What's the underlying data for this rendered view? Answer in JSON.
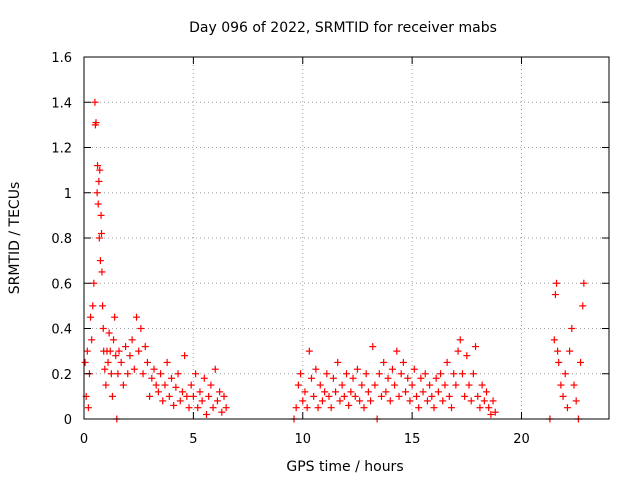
{
  "chart_data": {
    "type": "scatter",
    "title": "Day 096 of 2022, SRMTID for receiver mabs",
    "xlabel": "GPS time / hours",
    "ylabel": "SRMTID / TECUs",
    "xlim": [
      0,
      24
    ],
    "ylim": [
      0,
      1.6
    ],
    "x_ticks": [
      0,
      5,
      10,
      15,
      20
    ],
    "y_ticks": [
      0,
      0.2,
      0.4,
      0.6,
      0.8,
      1,
      1.2,
      1.4,
      1.6
    ],
    "x_tick_labels": [
      "0",
      "5",
      "10",
      "15",
      "20"
    ],
    "y_tick_labels": [
      "0",
      "0.2",
      "0.4",
      "0.6",
      "0.8",
      "1",
      "1.2",
      "1.4",
      "1.6"
    ],
    "grid": true,
    "marker": "+",
    "color": "#ff0000",
    "series": [
      {
        "name": "SRMTID",
        "points": [
          [
            0.05,
            0.25
          ],
          [
            0.1,
            0.1
          ],
          [
            0.15,
            0.3
          ],
          [
            0.2,
            0.05
          ],
          [
            0.25,
            0.2
          ],
          [
            0.3,
            0.45
          ],
          [
            0.35,
            0.35
          ],
          [
            0.4,
            0.5
          ],
          [
            0.45,
            0.6
          ],
          [
            0.5,
            1.4
          ],
          [
            0.52,
            1.3
          ],
          [
            0.55,
            1.31
          ],
          [
            0.6,
            1.0
          ],
          [
            0.62,
            1.12
          ],
          [
            0.65,
            0.95
          ],
          [
            0.68,
            1.05
          ],
          [
            0.7,
            0.8
          ],
          [
            0.72,
            1.1
          ],
          [
            0.75,
            0.7
          ],
          [
            0.78,
            0.9
          ],
          [
            0.8,
            0.82
          ],
          [
            0.82,
            0.65
          ],
          [
            0.85,
            0.5
          ],
          [
            0.88,
            0.4
          ],
          [
            0.9,
            0.3
          ],
          [
            0.95,
            0.22
          ],
          [
            1.0,
            0.15
          ],
          [
            1.05,
            0.3
          ],
          [
            1.1,
            0.25
          ],
          [
            1.15,
            0.38
          ],
          [
            1.2,
            0.3
          ],
          [
            1.25,
            0.2
          ],
          [
            1.3,
            0.1
          ],
          [
            1.35,
            0.35
          ],
          [
            1.4,
            0.45
          ],
          [
            1.45,
            0.28
          ],
          [
            1.5,
            0.0
          ],
          [
            1.55,
            0.2
          ],
          [
            1.6,
            0.3
          ],
          [
            1.7,
            0.25
          ],
          [
            1.8,
            0.15
          ],
          [
            1.9,
            0.32
          ],
          [
            2.0,
            0.2
          ],
          [
            2.1,
            0.28
          ],
          [
            2.2,
            0.35
          ],
          [
            2.3,
            0.22
          ],
          [
            2.4,
            0.45
          ],
          [
            2.5,
            0.3
          ],
          [
            2.6,
            0.4
          ],
          [
            2.7,
            0.2
          ],
          [
            2.8,
            0.32
          ],
          [
            2.9,
            0.25
          ],
          [
            3.0,
            0.1
          ],
          [
            3.1,
            0.18
          ],
          [
            3.2,
            0.22
          ],
          [
            3.3,
            0.15
          ],
          [
            3.4,
            0.12
          ],
          [
            3.5,
            0.2
          ],
          [
            3.6,
            0.08
          ],
          [
            3.7,
            0.15
          ],
          [
            3.8,
            0.25
          ],
          [
            3.9,
            0.1
          ],
          [
            4.0,
            0.18
          ],
          [
            4.1,
            0.06
          ],
          [
            4.2,
            0.14
          ],
          [
            4.3,
            0.2
          ],
          [
            4.4,
            0.08
          ],
          [
            4.5,
            0.12
          ],
          [
            4.6,
            0.28
          ],
          [
            4.7,
            0.1
          ],
          [
            4.8,
            0.05
          ],
          [
            4.9,
            0.15
          ],
          [
            5.0,
            0.1
          ],
          [
            5.1,
            0.2
          ],
          [
            5.2,
            0.05
          ],
          [
            5.3,
            0.12
          ],
          [
            5.4,
            0.08
          ],
          [
            5.5,
            0.18
          ],
          [
            5.6,
            0.02
          ],
          [
            5.7,
            0.1
          ],
          [
            5.8,
            0.15
          ],
          [
            5.9,
            0.05
          ],
          [
            6.0,
            0.22
          ],
          [
            6.1,
            0.08
          ],
          [
            6.2,
            0.12
          ],
          [
            6.3,
            0.03
          ],
          [
            6.4,
            0.1
          ],
          [
            6.5,
            0.05
          ],
          [
            9.6,
            0.0
          ],
          [
            9.7,
            0.05
          ],
          [
            9.8,
            0.15
          ],
          [
            9.9,
            0.2
          ],
          [
            10.0,
            0.08
          ],
          [
            10.1,
            0.12
          ],
          [
            10.2,
            0.05
          ],
          [
            10.3,
            0.3
          ],
          [
            10.4,
            0.18
          ],
          [
            10.5,
            0.1
          ],
          [
            10.6,
            0.22
          ],
          [
            10.7,
            0.05
          ],
          [
            10.8,
            0.15
          ],
          [
            10.9,
            0.08
          ],
          [
            11.0,
            0.12
          ],
          [
            11.1,
            0.2
          ],
          [
            11.2,
            0.1
          ],
          [
            11.3,
            0.05
          ],
          [
            11.4,
            0.18
          ],
          [
            11.5,
            0.12
          ],
          [
            11.6,
            0.25
          ],
          [
            11.7,
            0.08
          ],
          [
            11.8,
            0.15
          ],
          [
            11.9,
            0.1
          ],
          [
            12.0,
            0.2
          ],
          [
            12.1,
            0.06
          ],
          [
            12.2,
            0.12
          ],
          [
            12.3,
            0.18
          ],
          [
            12.4,
            0.1
          ],
          [
            12.5,
            0.22
          ],
          [
            12.6,
            0.08
          ],
          [
            12.7,
            0.15
          ],
          [
            12.8,
            0.05
          ],
          [
            12.9,
            0.2
          ],
          [
            13.0,
            0.12
          ],
          [
            13.1,
            0.08
          ],
          [
            13.2,
            0.32
          ],
          [
            13.3,
            0.15
          ],
          [
            13.4,
            0.0
          ],
          [
            13.5,
            0.2
          ],
          [
            13.6,
            0.1
          ],
          [
            13.7,
            0.25
          ],
          [
            13.8,
            0.12
          ],
          [
            13.9,
            0.18
          ],
          [
            14.0,
            0.08
          ],
          [
            14.1,
            0.22
          ],
          [
            14.2,
            0.15
          ],
          [
            14.3,
            0.3
          ],
          [
            14.4,
            0.1
          ],
          [
            14.5,
            0.2
          ],
          [
            14.6,
            0.25
          ],
          [
            14.7,
            0.12
          ],
          [
            14.8,
            0.18
          ],
          [
            14.9,
            0.08
          ],
          [
            15.0,
            0.15
          ],
          [
            15.1,
            0.22
          ],
          [
            15.2,
            0.1
          ],
          [
            15.3,
            0.05
          ],
          [
            15.4,
            0.18
          ],
          [
            15.5,
            0.12
          ],
          [
            15.6,
            0.2
          ],
          [
            15.7,
            0.08
          ],
          [
            15.8,
            0.15
          ],
          [
            15.9,
            0.1
          ],
          [
            16.0,
            0.05
          ],
          [
            16.1,
            0.18
          ],
          [
            16.2,
            0.12
          ],
          [
            16.3,
            0.2
          ],
          [
            16.4,
            0.08
          ],
          [
            16.5,
            0.15
          ],
          [
            16.6,
            0.25
          ],
          [
            16.7,
            0.1
          ],
          [
            16.8,
            0.05
          ],
          [
            16.9,
            0.2
          ],
          [
            17.0,
            0.15
          ],
          [
            17.1,
            0.3
          ],
          [
            17.2,
            0.35
          ],
          [
            17.3,
            0.2
          ],
          [
            17.4,
            0.1
          ],
          [
            17.5,
            0.28
          ],
          [
            17.6,
            0.15
          ],
          [
            17.7,
            0.08
          ],
          [
            17.8,
            0.2
          ],
          [
            17.9,
            0.32
          ],
          [
            18.0,
            0.1
          ],
          [
            18.1,
            0.05
          ],
          [
            18.2,
            0.15
          ],
          [
            18.3,
            0.08
          ],
          [
            18.4,
            0.12
          ],
          [
            18.5,
            0.05
          ],
          [
            18.6,
            0.02
          ],
          [
            18.7,
            0.08
          ],
          [
            18.8,
            0.03
          ],
          [
            21.3,
            0.0
          ],
          [
            21.5,
            0.35
          ],
          [
            21.55,
            0.55
          ],
          [
            21.6,
            0.6
          ],
          [
            21.65,
            0.3
          ],
          [
            21.7,
            0.25
          ],
          [
            21.8,
            0.15
          ],
          [
            21.9,
            0.1
          ],
          [
            22.0,
            0.2
          ],
          [
            22.1,
            0.05
          ],
          [
            22.2,
            0.3
          ],
          [
            22.3,
            0.4
          ],
          [
            22.4,
            0.15
          ],
          [
            22.5,
            0.08
          ],
          [
            22.6,
            0.0
          ],
          [
            22.7,
            0.25
          ],
          [
            22.8,
            0.5
          ],
          [
            22.85,
            0.6
          ]
        ]
      }
    ]
  }
}
